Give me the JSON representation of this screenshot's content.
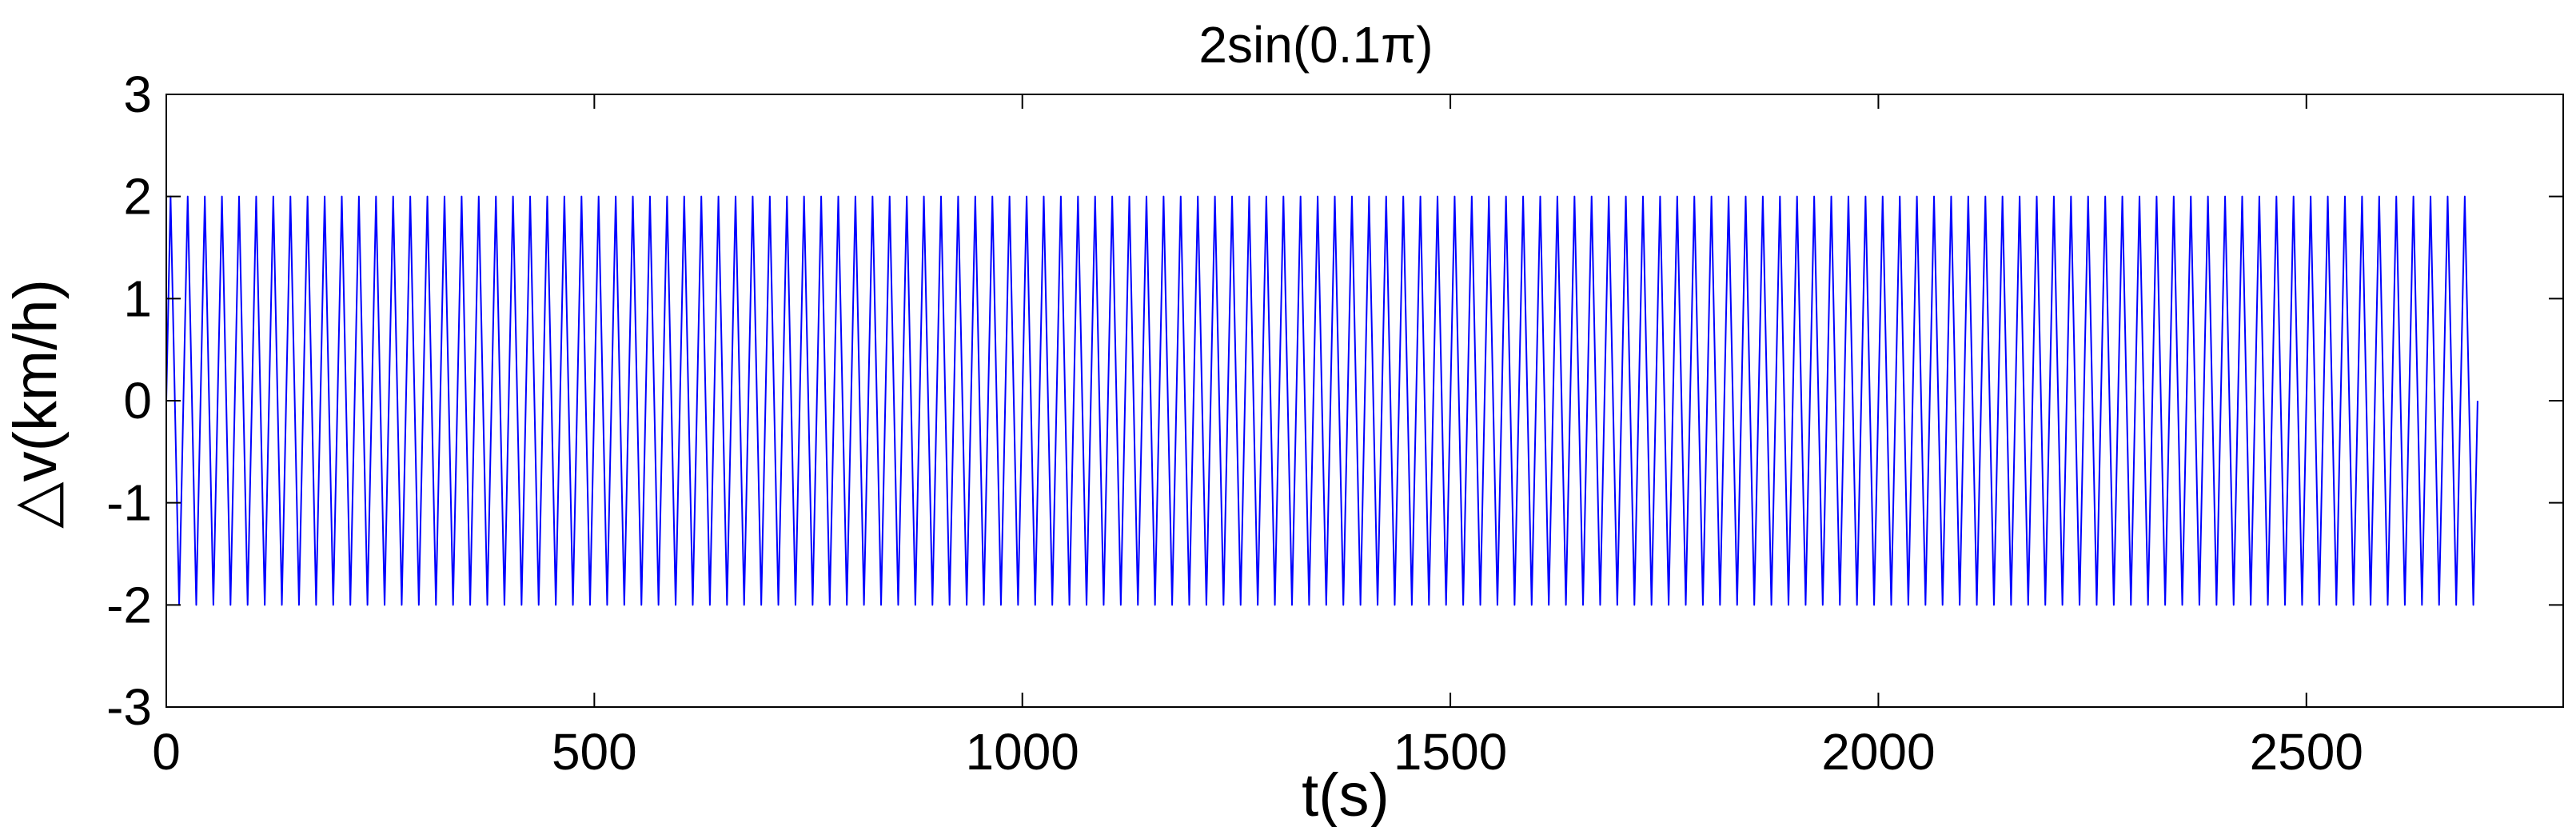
{
  "chart_data": {
    "type": "line",
    "title": "2sin(0.1π)",
    "xlabel": "t(s)",
    "ylabel": "△v(km/h)",
    "xlim": [
      0,
      2800
    ],
    "ylim": [
      -3,
      3
    ],
    "x_ticks": [
      0,
      500,
      1000,
      1500,
      2000,
      2500
    ],
    "x_tick_labels": [
      "0",
      "500",
      "1000",
      "1500",
      "2000",
      "2500"
    ],
    "y_ticks": [
      -3,
      -2,
      -1,
      0,
      1,
      2,
      3
    ],
    "y_tick_labels": [
      "-3",
      "-2",
      "-1",
      "0",
      "1",
      "2",
      "3"
    ],
    "grid": false,
    "legend": "none",
    "series": [
      {
        "function": "2*sin(0.1*pi*t)",
        "amplitude": 2,
        "angular_frequency": 0.314159,
        "t_range": [
          0,
          2700
        ],
        "sample_step": 5,
        "color": "#0000ff"
      }
    ]
  }
}
